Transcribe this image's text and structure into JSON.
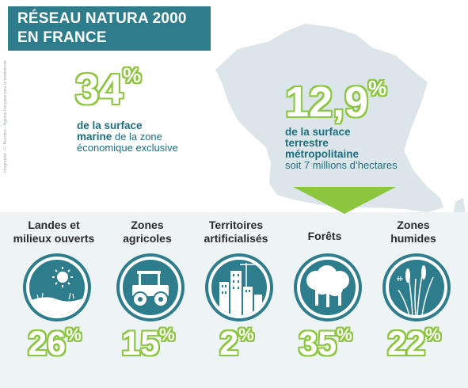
{
  "title": {
    "line1": "RÉSEAU NATURA 2000",
    "line2": "EN FRANCE"
  },
  "credit": "Infographie : C. Bourdon – Agence française pour la biodiversité",
  "marine": {
    "value": "34",
    "unit": "%",
    "bold": "de la surface marine",
    "line1_bold": "de la surface",
    "line2_bold": "marine",
    "line2_rest": " de la zone",
    "line3": "économique exclusive"
  },
  "terrestre": {
    "value": "12,9",
    "unit": "%",
    "line1": "de la surface",
    "line2": "terrestre",
    "line3": "métropolitaine",
    "line4": "soit 7 millions d’hectares"
  },
  "categories": [
    {
      "label1": "Landes et",
      "label2": "milieux ouverts",
      "value": "26",
      "unit": "%",
      "icon": "sun-landscape-icon"
    },
    {
      "label1": "Zones",
      "label2": "agricoles",
      "value": "15",
      "unit": "%",
      "icon": "tractor-icon"
    },
    {
      "label1": "Territoires",
      "label2": "artificialisés",
      "value": "2",
      "unit": "%",
      "icon": "city-buildings-icon"
    },
    {
      "label1": "Forêts",
      "label2": "",
      "value": "35",
      "unit": "%",
      "icon": "trees-icon"
    },
    {
      "label1": "Zones",
      "label2": "humides",
      "value": "22",
      "unit": "%",
      "icon": "reeds-icon"
    }
  ],
  "colors": {
    "teal": "#2e7d8c",
    "green": "#8cc63f",
    "map": "#dce6ea",
    "band": "#e8eff2"
  }
}
